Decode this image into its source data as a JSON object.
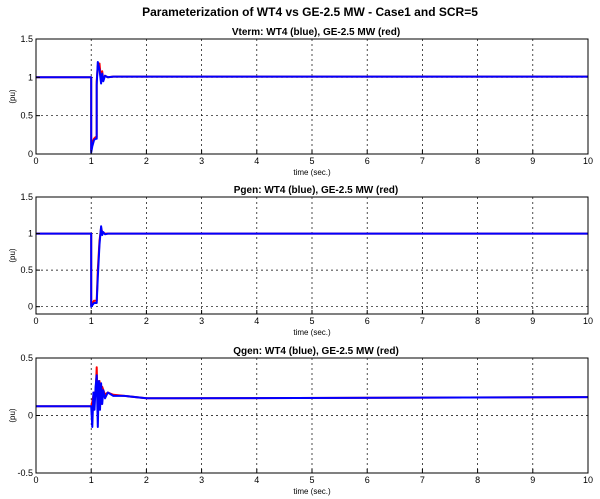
{
  "figure_title": "Parameterization of WT4 vs GE-2.5 MW - Case1 and SCR=5",
  "colors": {
    "series_a": "#0000ff",
    "series_b": "#ff0000",
    "grid": "#000000"
  },
  "chart_data": [
    {
      "type": "line",
      "title": "Vterm: WT4 (blue), GE-2.5 MW (red)",
      "xlabel": "time (sec.)",
      "ylabel": "(pu)",
      "xlim": [
        0,
        10
      ],
      "ylim": [
        0,
        1.5
      ],
      "xticks": [
        0,
        1,
        2,
        3,
        4,
        5,
        6,
        7,
        8,
        9,
        10
      ],
      "yticks": [
        0,
        0.5,
        1,
        1.5
      ],
      "grid": true,
      "series": [
        {
          "color": "#ff0000",
          "x": [
            0,
            1.0,
            1.0,
            1.02,
            1.05,
            1.08,
            1.1,
            1.1,
            1.12,
            1.15,
            1.18,
            1.2,
            1.22,
            1.25,
            1.3,
            1.4,
            10
          ],
          "y": [
            1.0,
            1.0,
            0.05,
            0.15,
            0.2,
            0.22,
            0.22,
            0.95,
            1.15,
            1.18,
            0.95,
            1.08,
            0.97,
            1.02,
            1.0,
            1.01,
            1.01
          ]
        },
        {
          "color": "#0000ff",
          "x": [
            0,
            1.0,
            1.0,
            1.02,
            1.05,
            1.08,
            1.1,
            1.1,
            1.12,
            1.15,
            1.18,
            1.2,
            1.22,
            1.25,
            1.3,
            1.4,
            10
          ],
          "y": [
            1.0,
            1.0,
            0.02,
            0.1,
            0.18,
            0.2,
            0.2,
            0.9,
            1.2,
            1.1,
            0.92,
            1.05,
            0.95,
            1.02,
            1.0,
            1.01,
            1.01
          ]
        }
      ]
    },
    {
      "type": "line",
      "title": "Pgen: WT4 (blue), GE-2.5 MW (red)",
      "xlabel": "time (sec.)",
      "ylabel": "(pu)",
      "xlim": [
        0,
        10
      ],
      "ylim": [
        -0.1,
        1.5
      ],
      "xticks": [
        0,
        1,
        2,
        3,
        4,
        5,
        6,
        7,
        8,
        9,
        10
      ],
      "yticks": [
        0,
        0.5,
        1,
        1.5
      ],
      "grid": true,
      "series": [
        {
          "color": "#ff0000",
          "x": [
            0,
            1.0,
            1.0,
            1.05,
            1.1,
            1.12,
            1.15,
            1.18,
            1.2,
            1.25,
            1.3,
            10
          ],
          "y": [
            1.0,
            1.0,
            0.02,
            0.08,
            0.08,
            0.5,
            0.9,
            1.08,
            1.02,
            1.0,
            1.0,
            1.0
          ]
        },
        {
          "color": "#0000ff",
          "x": [
            0,
            1.0,
            1.0,
            1.05,
            1.1,
            1.12,
            1.15,
            1.18,
            1.2,
            1.22,
            1.25,
            1.3,
            10
          ],
          "y": [
            1.0,
            1.0,
            0.0,
            0.05,
            0.05,
            0.4,
            0.85,
            1.1,
            0.98,
            1.02,
            0.99,
            1.0,
            1.0
          ]
        }
      ]
    },
    {
      "type": "line",
      "title": "Qgen: WT4 (blue), GE-2.5 MW (red)",
      "xlabel": "time (sec.)",
      "ylabel": "(pu)",
      "xlim": [
        0,
        10
      ],
      "ylim": [
        -0.5,
        0.5
      ],
      "xticks": [
        0,
        1,
        2,
        3,
        4,
        5,
        6,
        7,
        8,
        9,
        10
      ],
      "yticks": [
        -0.5,
        0,
        0.5
      ],
      "grid": true,
      "series": [
        {
          "color": "#ff0000",
          "x": [
            0,
            1.0,
            1.02,
            1.05,
            1.08,
            1.1,
            1.12,
            1.15,
            1.18,
            1.2,
            1.25,
            1.3,
            1.4,
            1.6,
            2.0,
            2.5,
            10
          ],
          "y": [
            0.08,
            0.08,
            0.12,
            0.2,
            0.18,
            0.42,
            0.05,
            0.3,
            0.1,
            0.25,
            0.18,
            0.2,
            0.18,
            0.17,
            0.15,
            0.15,
            0.16
          ]
        },
        {
          "color": "#0000ff",
          "x": [
            0,
            1.0,
            1.02,
            1.04,
            1.06,
            1.08,
            1.1,
            1.12,
            1.14,
            1.16,
            1.18,
            1.2,
            1.22,
            1.25,
            1.3,
            1.4,
            1.6,
            2.0,
            2.5,
            10
          ],
          "y": [
            0.08,
            0.08,
            -0.1,
            0.2,
            0.05,
            0.25,
            0.35,
            -0.1,
            0.3,
            0.05,
            0.28,
            0.1,
            0.22,
            0.15,
            0.2,
            0.17,
            0.17,
            0.15,
            0.15,
            0.16
          ]
        }
      ]
    }
  ]
}
